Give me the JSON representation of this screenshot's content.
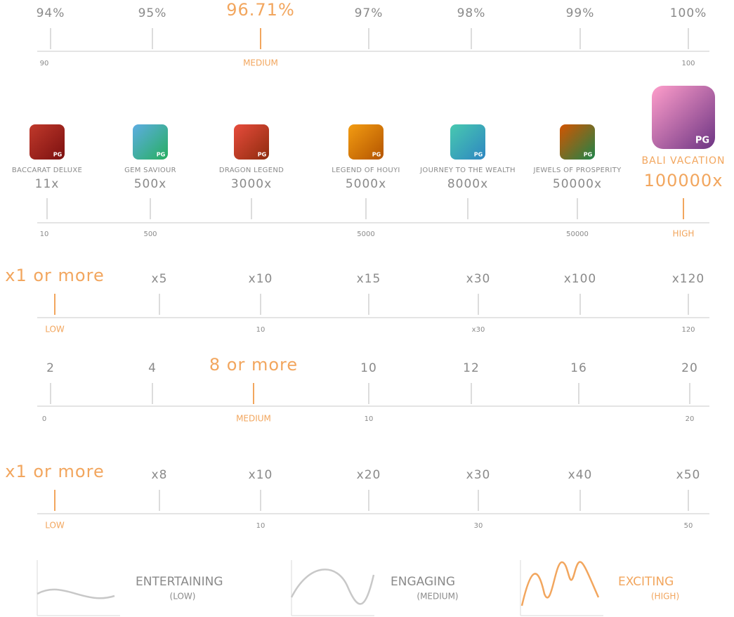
{
  "scales": [
    {
      "items": [
        {
          "label": "94%"
        },
        {
          "label": "95%"
        },
        {
          "label": "96.71%",
          "accent": true
        },
        {
          "label": "97%"
        },
        {
          "label": "98%"
        },
        {
          "label": "99%"
        },
        {
          "label": "100%"
        }
      ],
      "bottom": [
        {
          "label": "90"
        },
        {
          "label": "MEDIUM",
          "accent": true
        },
        {
          "label": "100"
        }
      ]
    },
    {
      "items": [
        {
          "name": "BACCARAT DELUXE",
          "badge": "PG",
          "label": "11x"
        },
        {
          "name": "GEM SAVIOUR",
          "badge": "PG",
          "label": "500x"
        },
        {
          "name": "DRAGON LEGEND",
          "badge": "PG",
          "label": "3000x"
        },
        {
          "name": "LEGEND OF HOUYI",
          "badge": "PG",
          "label": "5000x"
        },
        {
          "name": "JOURNEY TO THE WEALTH",
          "badge": "PG",
          "label": "8000x"
        },
        {
          "name": "JEWELS OF PROSPERITY",
          "badge": "PG",
          "label": "50000x"
        },
        {
          "name": "BALI VACATION",
          "badge": "PG",
          "label": "100000x",
          "accent": true
        }
      ],
      "bottom": [
        {
          "label": "10"
        },
        {
          "label": "500"
        },
        {
          "label": "5000"
        },
        {
          "label": "50000"
        },
        {
          "label": "HIGH",
          "accent": true
        }
      ]
    },
    {
      "items": [
        {
          "label": "x1 or more",
          "accent": true
        },
        {
          "label": "x5"
        },
        {
          "label": "x10"
        },
        {
          "label": "x15"
        },
        {
          "label": "x30"
        },
        {
          "label": "x100"
        },
        {
          "label": "x120"
        }
      ],
      "bottom": [
        {
          "label": "LOW",
          "accent": true
        },
        {
          "label": "10"
        },
        {
          "label": "x30"
        },
        {
          "label": "120"
        }
      ]
    },
    {
      "items": [
        {
          "label": "2"
        },
        {
          "label": "4"
        },
        {
          "label": "8 or more",
          "accent": true
        },
        {
          "label": "10"
        },
        {
          "label": "12"
        },
        {
          "label": "16"
        },
        {
          "label": "20"
        }
      ],
      "bottom": [
        {
          "label": "0"
        },
        {
          "label": "MEDIUM",
          "accent": true
        },
        {
          "label": "10"
        },
        {
          "label": "20"
        }
      ]
    },
    {
      "items": [
        {
          "label": "x1 or more",
          "accent": true
        },
        {
          "label": "x8"
        },
        {
          "label": "x10"
        },
        {
          "label": "x20"
        },
        {
          "label": "x30"
        },
        {
          "label": "x40"
        },
        {
          "label": "x50"
        }
      ],
      "bottom": [
        {
          "label": "LOW",
          "accent": true
        },
        {
          "label": "10"
        },
        {
          "label": "30"
        },
        {
          "label": "50"
        }
      ]
    }
  ],
  "volatility": [
    {
      "title": "ENTERTAINING",
      "level": "(LOW)"
    },
    {
      "title": "ENGAGING",
      "level": "(MEDIUM)"
    },
    {
      "title": "EXCITING",
      "level": "(HIGH)",
      "accent": true
    }
  ]
}
